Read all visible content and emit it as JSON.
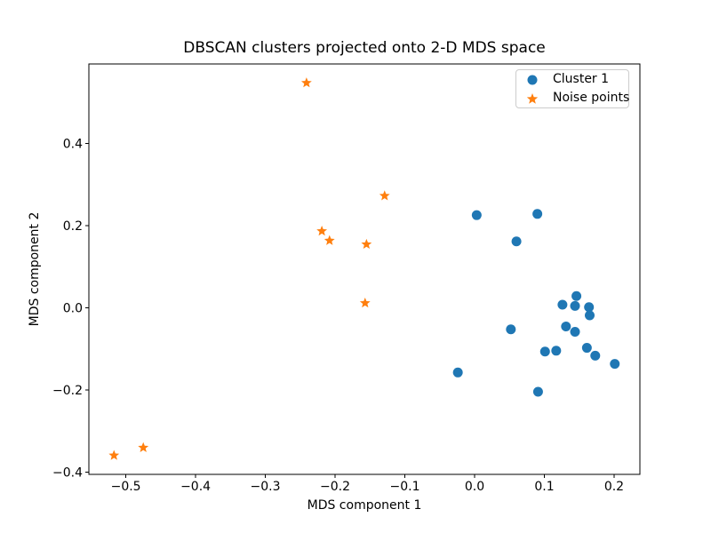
{
  "chart_data": {
    "type": "scatter",
    "title": "DBSCAN clusters projected onto 2-D MDS space",
    "xlabel": "MDS component 1",
    "ylabel": "MDS component 2",
    "xlim": [
      -0.553,
      0.237
    ],
    "ylim": [
      -0.405,
      0.594
    ],
    "grid": false,
    "axis_color": "#000000",
    "background_color": "#ffffff",
    "xticks": {
      "values": [
        -0.5,
        -0.4,
        -0.3,
        -0.2,
        -0.1,
        0.0,
        0.1,
        0.2
      ],
      "labels": [
        "−0.5",
        "−0.4",
        "−0.3",
        "−0.2",
        "−0.1",
        "0.0",
        "0.1",
        "0.2"
      ]
    },
    "yticks": {
      "values": [
        -0.4,
        -0.2,
        0.0,
        0.2,
        0.4
      ],
      "labels": [
        "−0.4",
        "−0.2",
        "0.0",
        "0.2",
        "0.4"
      ]
    },
    "legend": {
      "position": "upper right",
      "entries": [
        {
          "label": "Cluster 1",
          "marker": "circle",
          "color": "#1f77b4"
        },
        {
          "label": "Noise points",
          "marker": "star",
          "color": "#ff7f0e"
        }
      ]
    },
    "series": [
      {
        "name": "Cluster 1",
        "marker": "circle",
        "color": "#1f77b4",
        "points": [
          [
            0.003,
            0.226
          ],
          [
            0.09,
            0.229
          ],
          [
            0.06,
            0.162
          ],
          [
            0.146,
            0.029
          ],
          [
            0.126,
            0.008
          ],
          [
            0.144,
            0.005
          ],
          [
            0.164,
            0.002
          ],
          [
            0.165,
            -0.018
          ],
          [
            0.131,
            -0.045
          ],
          [
            0.144,
            -0.058
          ],
          [
            0.052,
            -0.052
          ],
          [
            0.101,
            -0.106
          ],
          [
            0.117,
            -0.104
          ],
          [
            0.161,
            -0.097
          ],
          [
            0.173,
            -0.116
          ],
          [
            0.201,
            -0.136
          ],
          [
            -0.024,
            -0.157
          ],
          [
            0.091,
            -0.204
          ]
        ]
      },
      {
        "name": "Noise points",
        "marker": "star",
        "color": "#ff7f0e",
        "points": [
          [
            -0.241,
            0.548
          ],
          [
            -0.129,
            0.273
          ],
          [
            -0.219,
            0.187
          ],
          [
            -0.208,
            0.164
          ],
          [
            -0.155,
            0.155
          ],
          [
            -0.157,
            0.012
          ],
          [
            -0.517,
            -0.359
          ],
          [
            -0.475,
            -0.34
          ]
        ]
      }
    ]
  }
}
